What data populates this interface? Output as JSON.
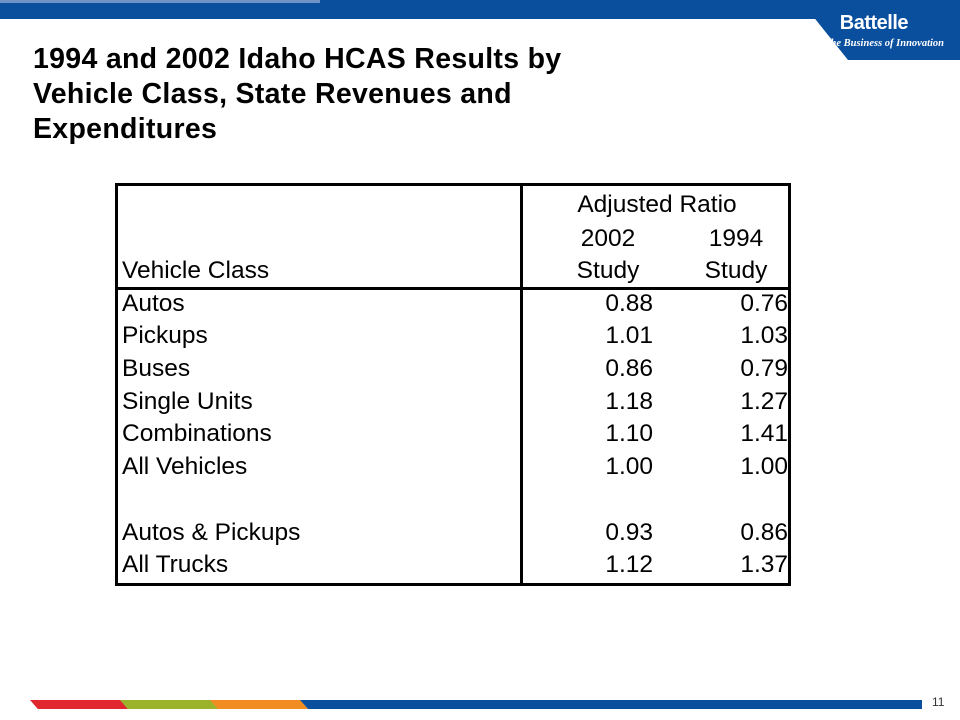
{
  "brand": {
    "name": "Battelle",
    "tagline": "The Business of Innovation",
    "colors": {
      "primary": "#0a4f9e",
      "red": "#e0262f",
      "green": "#9ab32a",
      "orange": "#f08c21"
    }
  },
  "title": {
    "line1": "1994 and 2002 Idaho HCAS Results by",
    "line2": "Vehicle Class, State Revenues and",
    "line3": "Expenditures"
  },
  "table": {
    "header": {
      "group": "Adjusted Ratio",
      "col1_year": "2002",
      "col1_label": "Study",
      "col2_year": "1994",
      "col2_label": "Study",
      "row_label": "Vehicle Class"
    },
    "rows": [
      {
        "name": "Autos",
        "v2002": "0.88",
        "v1994": "0.76"
      },
      {
        "name": "Pickups",
        "v2002": "1.01",
        "v1994": "1.03"
      },
      {
        "name": "Buses",
        "v2002": "0.86",
        "v1994": "0.79"
      },
      {
        "name": "Single Units",
        "v2002": "1.18",
        "v1994": "1.27"
      },
      {
        "name": "Combinations",
        "v2002": "1.10",
        "v1994": "1.41"
      },
      {
        "name": "All Vehicles",
        "v2002": "1.00",
        "v1994": "1.00"
      },
      {
        "name": "Autos & Pickups",
        "v2002": "0.93",
        "v1994": "0.86"
      },
      {
        "name": "All Trucks",
        "v2002": "1.12",
        "v1994": "1.37"
      }
    ]
  },
  "page_number": "11"
}
